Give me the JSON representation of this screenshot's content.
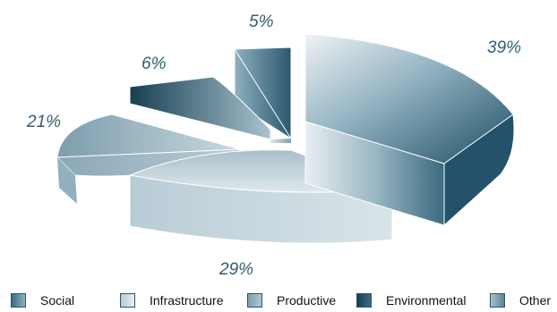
{
  "chart_data": {
    "type": "pie",
    "categories": [
      "Social",
      "Infrastructure",
      "Productive",
      "Environmental",
      "Other"
    ],
    "values": [
      39,
      29,
      21,
      6,
      5
    ],
    "value_labels": [
      "39%",
      "29%",
      "21%",
      "6%",
      "5%"
    ],
    "title": "",
    "style": "3d exploded pie",
    "legend_position": "bottom",
    "colors": {
      "Social": "#1e4c63",
      "Infrastructure": "#c6d6de",
      "Productive": "#9ab4c2",
      "Environmental": "#1a4a5c",
      "Other": "#3e6d82"
    }
  }
}
